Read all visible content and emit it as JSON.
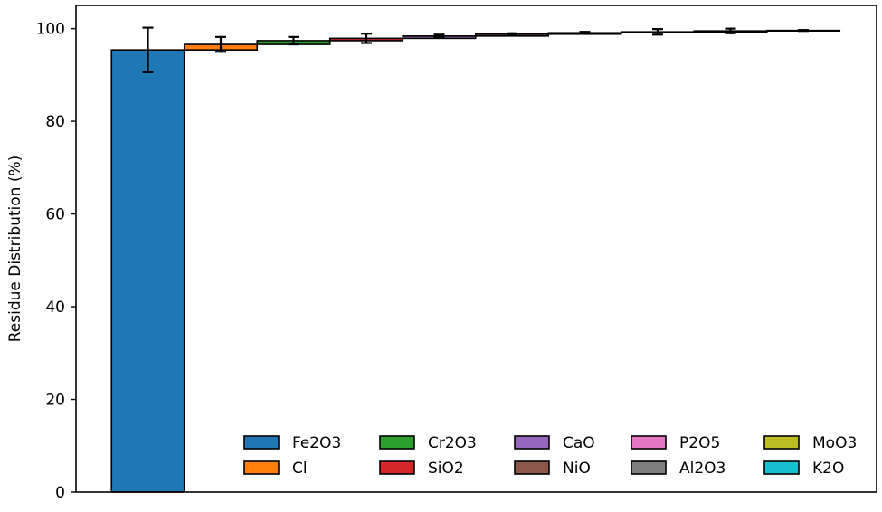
{
  "chart_data": {
    "type": "bar",
    "subtype": "stacked-waterfall",
    "title": "",
    "xlabel": "",
    "ylabel": "Residue Distribution (%)",
    "ylim": [
      0,
      105
    ],
    "yticks": [
      0,
      20,
      40,
      60,
      80,
      100
    ],
    "grid": false,
    "legend_position": "lower-right",
    "legend_columns": 5,
    "series": [
      {
        "name": "Fe2O3",
        "value": 95.4,
        "error": 4.8,
        "color": "#1f77b4"
      },
      {
        "name": "Cl",
        "value": 1.2,
        "error": 1.6,
        "color": "#ff7f0e"
      },
      {
        "name": "Cr2O3",
        "value": 0.8,
        "error": 0.8,
        "color": "#2ca02c"
      },
      {
        "name": "SiO2",
        "value": 0.5,
        "error": 1.0,
        "color": "#d62728"
      },
      {
        "name": "CaO",
        "value": 0.5,
        "error": 0.3,
        "color": "#9467bd"
      },
      {
        "name": "NiO",
        "value": 0.4,
        "error": 0.2,
        "color": "#8c564b"
      },
      {
        "name": "P2O5",
        "value": 0.3,
        "error": 0.2,
        "color": "#e377c2"
      },
      {
        "name": "Al2O3",
        "value": 0.2,
        "error": 0.6,
        "color": "#7f7f7f"
      },
      {
        "name": "MoO3",
        "value": 0.2,
        "error": 0.5,
        "color": "#bcbd22"
      },
      {
        "name": "K2O",
        "value": 0.1,
        "error": 0.1,
        "color": "#17becf"
      }
    ]
  }
}
